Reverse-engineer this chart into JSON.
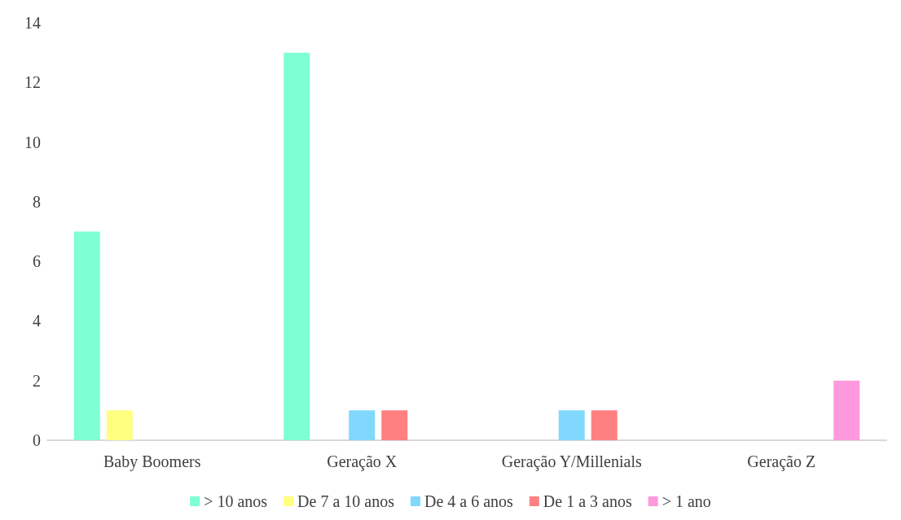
{
  "chart_data": {
    "type": "bar",
    "categories": [
      "Baby Boomers",
      "Geração X",
      "Geração Y/Millenials",
      "Geração Z"
    ],
    "series": [
      {
        "name": "> 10 anos",
        "color": "#7fffd4",
        "values": [
          7,
          13,
          null,
          null
        ]
      },
      {
        "name": "De 7 a 10 anos",
        "color": "#ffff80",
        "values": [
          1,
          null,
          null,
          null
        ]
      },
      {
        "name": "De 4 a 6 anos",
        "color": "#80d8ff",
        "values": [
          null,
          1,
          1,
          null
        ]
      },
      {
        "name": "De 1 a 3 anos",
        "color": "#ff8080",
        "values": [
          null,
          1,
          1,
          null
        ]
      },
      {
        "name": "> 1 ano",
        "color": "#ff99dd",
        "values": [
          null,
          null,
          null,
          2
        ]
      }
    ],
    "ylim": [
      0,
      14
    ],
    "yticks": [
      0,
      2,
      4,
      6,
      8,
      10,
      12,
      14
    ],
    "grid": false,
    "legend": "bottom"
  }
}
